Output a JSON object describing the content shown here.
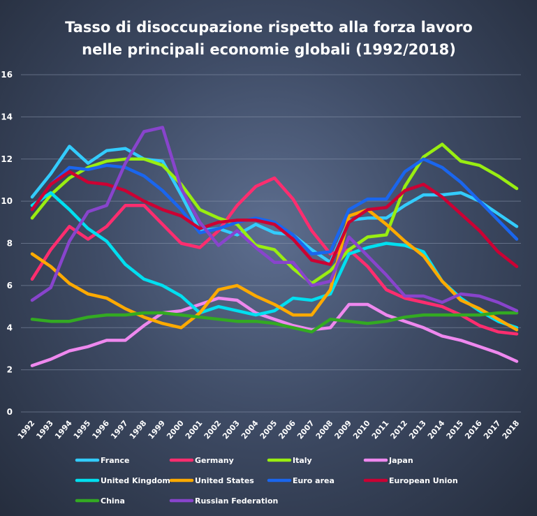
{
  "chart_data": {
    "type": "line",
    "title": [
      "Tasso di disoccupazione rispetto alla forza lavoro",
      "nelle principali economie globali (1992/2018)"
    ],
    "x": [
      "1992",
      "1993",
      "1994",
      "1995",
      "1996",
      "1997",
      "1998",
      "1999",
      "2000",
      "2001",
      "2002",
      "2003",
      "2004",
      "2005",
      "2006",
      "2007",
      "2008",
      "2009",
      "2010",
      "2011",
      "2012",
      "2013",
      "2014",
      "2015",
      "2016",
      "2017",
      "2018"
    ],
    "y_ticks": [
      0,
      2,
      4,
      6,
      8,
      10,
      12,
      14,
      16
    ],
    "ylim": [
      0,
      16
    ],
    "grid": true,
    "legend_position": "bottom",
    "series": [
      {
        "name": "France",
        "color": "#33ccff",
        "values": [
          10.2,
          11.3,
          12.6,
          11.8,
          12.4,
          12.5,
          12.0,
          11.9,
          10.3,
          8.6,
          8.7,
          8.4,
          8.9,
          8.5,
          8.4,
          7.7,
          7.1,
          9.1,
          9.2,
          9.2,
          9.8,
          10.3,
          10.3,
          10.4,
          10.0,
          9.4,
          8.8
        ]
      },
      {
        "name": "Germany",
        "color": "#ff2d6f",
        "values": [
          6.3,
          7.7,
          8.8,
          8.2,
          8.8,
          9.8,
          9.8,
          8.9,
          8.0,
          7.8,
          8.6,
          9.8,
          10.7,
          11.1,
          10.1,
          8.6,
          7.5,
          7.7,
          6.9,
          5.8,
          5.4,
          5.2,
          5.0,
          4.6,
          4.1,
          3.8,
          3.7
        ]
      },
      {
        "name": "Italy",
        "color": "#99ee11",
        "values": [
          9.2,
          10.3,
          11.1,
          11.6,
          11.9,
          12.0,
          12.0,
          11.7,
          10.8,
          9.6,
          9.2,
          8.9,
          7.9,
          7.7,
          6.8,
          6.1,
          6.7,
          7.7,
          8.3,
          8.4,
          10.7,
          12.1,
          12.7,
          11.9,
          11.7,
          11.2,
          10.6
        ]
      },
      {
        "name": "Japan",
        "color": "#ee88ee",
        "values": [
          2.2,
          2.5,
          2.9,
          3.1,
          3.4,
          3.4,
          4.1,
          4.7,
          4.8,
          5.1,
          5.4,
          5.3,
          4.7,
          4.4,
          4.1,
          3.9,
          4.0,
          5.1,
          5.1,
          4.6,
          4.3,
          4.0,
          3.6,
          3.4,
          3.1,
          2.8,
          2.4
        ]
      },
      {
        "name": "United Kingdom",
        "color": "#00dff0",
        "values": [
          9.8,
          10.4,
          9.6,
          8.7,
          8.1,
          7.0,
          6.3,
          6.0,
          5.5,
          4.7,
          5.0,
          4.8,
          4.6,
          4.8,
          5.4,
          5.3,
          5.6,
          7.5,
          7.8,
          8.0,
          7.9,
          7.6,
          6.2,
          5.4,
          4.8,
          4.3,
          4.0
        ]
      },
      {
        "name": "United States",
        "color": "#ffaa00",
        "values": [
          7.5,
          6.9,
          6.1,
          5.6,
          5.4,
          4.9,
          4.5,
          4.2,
          4.0,
          4.7,
          5.8,
          6.0,
          5.5,
          5.1,
          4.6,
          4.6,
          5.8,
          9.3,
          9.6,
          8.9,
          8.1,
          7.4,
          6.2,
          5.3,
          4.9,
          4.4,
          3.9
        ]
      },
      {
        "name": "Euro area",
        "color": "#1a66ee",
        "values": [
          9.6,
          10.8,
          11.6,
          11.5,
          11.7,
          11.6,
          11.2,
          10.5,
          9.6,
          8.5,
          8.7,
          9.0,
          9.2,
          9.0,
          8.4,
          7.5,
          7.6,
          9.6,
          10.1,
          10.1,
          11.4,
          12.0,
          11.6,
          10.9,
          10.0,
          9.1,
          8.2
        ]
      },
      {
        "name": "European Union",
        "color": "#cc0033",
        "values": [
          9.6,
          10.8,
          11.4,
          10.9,
          10.8,
          10.5,
          10.0,
          9.6,
          9.3,
          8.7,
          9.0,
          9.1,
          9.1,
          8.9,
          8.2,
          7.2,
          7.0,
          9.0,
          9.6,
          9.7,
          10.5,
          10.8,
          10.2,
          9.4,
          8.6,
          7.6,
          6.9
        ]
      },
      {
        "name": "China",
        "color": "#33aa22",
        "values": [
          4.4,
          4.3,
          4.3,
          4.5,
          4.6,
          4.6,
          4.7,
          4.7,
          4.6,
          4.5,
          4.4,
          4.3,
          4.3,
          4.2,
          4.0,
          3.8,
          4.4,
          4.3,
          4.2,
          4.3,
          4.5,
          4.6,
          4.6,
          4.6,
          4.6,
          4.7,
          4.7
        ]
      },
      {
        "name": "Russian Federation",
        "color": "#8844cc",
        "values": [
          5.3,
          5.9,
          8.1,
          9.5,
          9.8,
          11.8,
          13.3,
          13.5,
          10.6,
          9.0,
          7.9,
          8.6,
          7.8,
          7.1,
          7.1,
          6.0,
          6.2,
          8.3,
          7.4,
          6.5,
          5.5,
          5.5,
          5.2,
          5.6,
          5.5,
          5.2,
          4.8
        ]
      }
    ]
  }
}
